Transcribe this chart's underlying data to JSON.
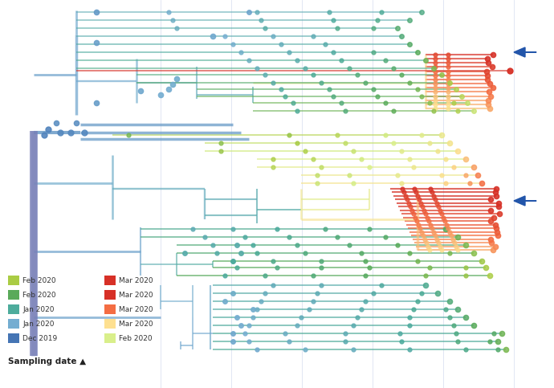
{
  "background_color": "#ffffff",
  "legend_title": "Sampling date ▲",
  "legend_items_left": [
    {
      "label": "Dec 2019",
      "color": "#4575b4"
    },
    {
      "label": "Jan 2020",
      "color": "#74add1"
    },
    {
      "label": "Jan 2020",
      "color": "#4dac9c"
    },
    {
      "label": "Feb 2020",
      "color": "#5aaa5a"
    },
    {
      "label": "Feb 2020",
      "color": "#aacc44"
    }
  ],
  "legend_items_right": [
    {
      "label": "Feb 2020",
      "color": "#d9ef8b"
    },
    {
      "label": "Mar 2020",
      "color": "#fee090"
    },
    {
      "label": "Mar 2020",
      "color": "#f46d43"
    },
    {
      "label": "Mar 2020",
      "color": "#d73027"
    },
    {
      "label": "Mar 2020",
      "color": "#d73027"
    }
  ],
  "arrow_color": "#2255aa",
  "grid_color": "#d8dff0",
  "trunk_color": "#8088bb",
  "branch_color": "#a0aabb"
}
